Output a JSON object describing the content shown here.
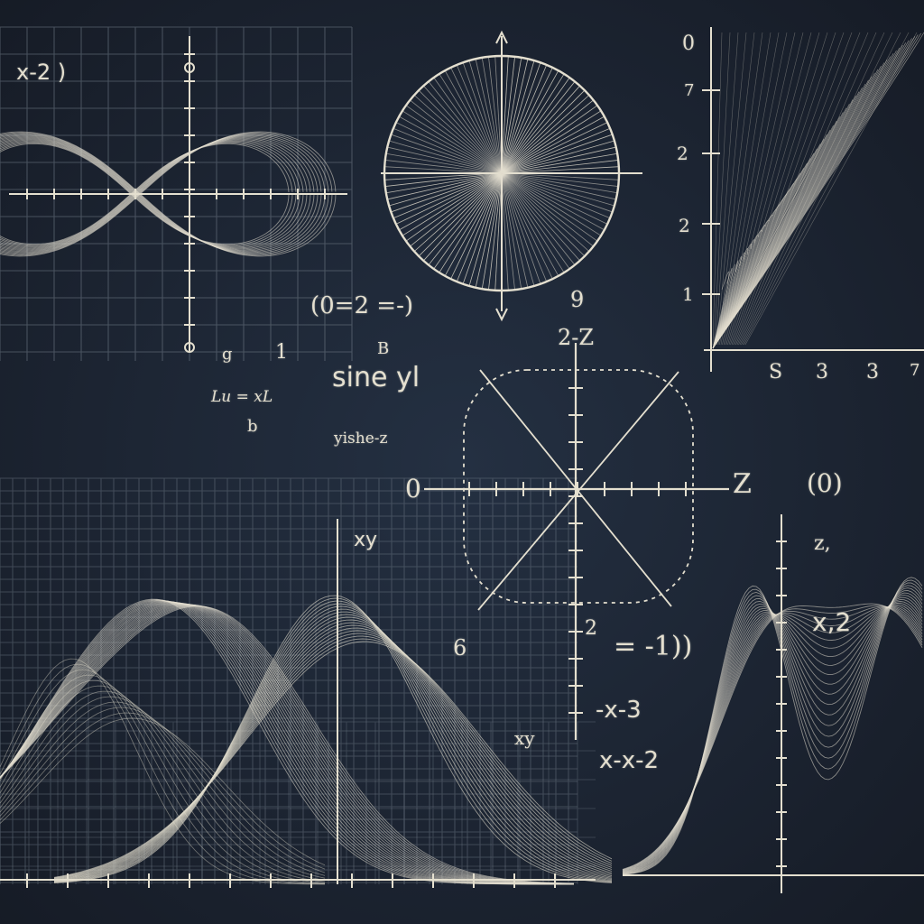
{
  "colors": {
    "board": "#1b2230",
    "chalk": "#e4dfcf",
    "chalk_dim": "#9e9a8c",
    "grid": "#6f7a86"
  },
  "labels": {
    "x2_top_left": "x-2 )",
    "sine_yl": "sine yl",
    "yishe": "yishe-z",
    "g_small": "g",
    "one_mid": "1",
    "lu_eq": "Lu = xL",
    "b_small": "b",
    "b_left_mark": "B",
    "zero_eq": "(0=2 =-)",
    "two_z": "2-Z",
    "nine_top": "9",
    "zero_left": "0",
    "z_right": "Z",
    "circle_o": "(0)",
    "z_small": "z,",
    "xy_mid": "xy",
    "six": "6",
    "eq_minus1": "= -1))",
    "xbar3": "-x-3",
    "xbar2": "x-x-2",
    "xy_low": "xy",
    "x2_right": "x,2",
    "two_small": "2",
    "rc_zero": "0",
    "rc_7": "7",
    "rc_2a": "2",
    "rc_2b": "2",
    "rc_1": "1",
    "rc_s": "S",
    "rc_3a": "3",
    "rc_3b": "3",
    "rc_mark_z": "7"
  }
}
